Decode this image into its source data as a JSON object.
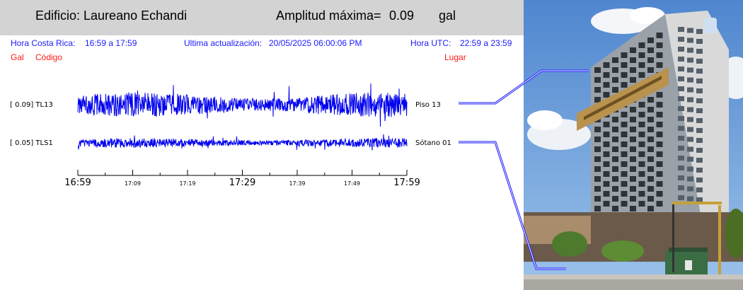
{
  "header": {
    "building": "Edificio: Laureano Echandi",
    "amplitude_label": "Amplitud máxima=",
    "amplitude_value": "0.09",
    "amplitude_unit": "gal",
    "bg_color": "#d3d3d3"
  },
  "info": {
    "local_label": "Hora Costa Rica:",
    "local_range": "16:59 a 17:59",
    "update_label": "Ultima actualización:",
    "update_value": "20/05/2025 06:00:06 PM",
    "utc_label": "Hora UTC:",
    "utc_range": "22:59 a 23:59",
    "color": "#1a1aff"
  },
  "columns": {
    "gal": "Gal",
    "code": "Código",
    "place": "Lugar",
    "color": "#ff1a1a"
  },
  "traces": [
    {
      "peak": "[   0.09] TL13",
      "place": "Piso 13",
      "amplitude_gal": 0.09
    },
    {
      "peak": "[   0.05] TLS1",
      "place": "Sótano 01",
      "amplitude_gal": 0.05
    }
  ],
  "time_axis": {
    "major_labels": [
      "16:59",
      "17:29",
      "17:59"
    ],
    "minor_labels": [
      "17:09",
      "17:19",
      "17:39",
      "17:49"
    ]
  },
  "trace_color": "#0000ee",
  "photo": {
    "icon": "building-photo",
    "sky_color": "#6f9fd8"
  }
}
